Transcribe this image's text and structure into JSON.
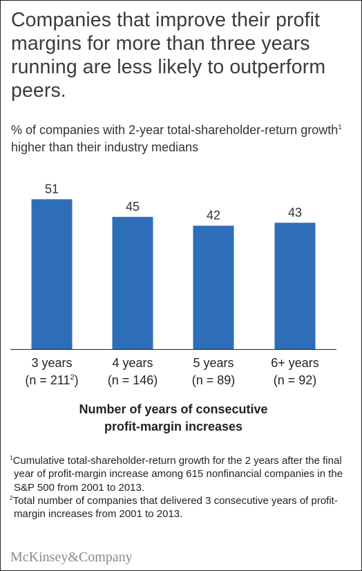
{
  "header": {
    "title": "Companies that improve their profit margins for more than three years running are less likely to outperform peers.",
    "subtitle_main": "% of companies with 2-year total-shareholder-return growth",
    "subtitle_sup": "1",
    "subtitle_rest": " higher than their industry medians"
  },
  "chart_data": {
    "type": "bar",
    "title": "Companies that improve their profit margins for more than three years running are less likely to outperform peers.",
    "ylabel": "% of companies with 2-year total-shareholder-return growth higher than their industry medians",
    "xlabel": "Number of years of consecutive profit-margin increases",
    "categories": [
      "3 years",
      "4 years",
      "5 years",
      "6+ years"
    ],
    "category_sublabels": [
      "(n = 211",
      "(n = 146)",
      "(n = 89)",
      "(n = 92)"
    ],
    "category_sublabel_sups": [
      "2",
      "",
      "",
      ""
    ],
    "category_sublabel_tails": [
      ")",
      "",
      "",
      ""
    ],
    "values": [
      51,
      45,
      42,
      43
    ],
    "ylim": [
      0,
      55
    ],
    "grid": false,
    "legend": "none",
    "bar_color": "#2e6db7",
    "value_labels": [
      "51",
      "45",
      "42",
      "43"
    ]
  },
  "xaxis": {
    "line1": "Number of years of consecutive",
    "line2": "profit-margin increases"
  },
  "footnotes": {
    "fn1_sup": "1",
    "fn1_text": "Cumulative total-shareholder-return growth for the 2 years after the final year of profit-margin increase among 615 nonfinancial companies in the S&P 500 from 2001 to 2013.",
    "fn2_sup": "2",
    "fn2_text": "Total number of companies that delivered 3 consecutive years of profit-margin increases from 2001 to 2013."
  },
  "brand": {
    "name": "McKinsey&Company"
  },
  "colors": {
    "bar": "#2e6db7",
    "text": "#222222",
    "title": "#3b3b3b",
    "brand": "#8a8a8a"
  }
}
